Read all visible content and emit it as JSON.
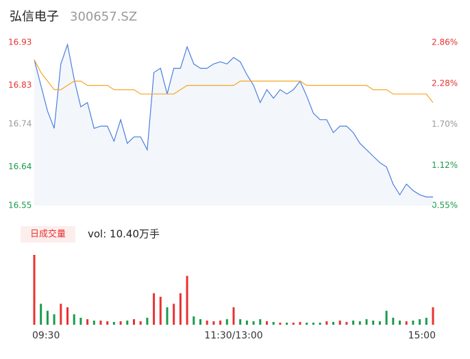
{
  "chart_data": {
    "type": "line",
    "title": "弘信电子",
    "subtitle": "300657.SZ",
    "categories": [
      "09:30",
      null,
      null,
      null,
      null,
      null,
      null,
      null,
      null,
      null,
      null,
      null,
      null,
      null,
      null,
      null,
      null,
      null,
      null,
      null,
      null,
      null,
      null,
      null,
      null,
      null,
      null,
      null,
      null,
      null,
      "11:30/13:00",
      null,
      null,
      null,
      null,
      null,
      null,
      null,
      null,
      null,
      null,
      null,
      null,
      null,
      null,
      null,
      null,
      null,
      null,
      null,
      null,
      null,
      null,
      null,
      null,
      null,
      null,
      null,
      null,
      null,
      "15:00"
    ],
    "series": [
      {
        "name": "price",
        "color": "#4a7fe0",
        "values": [
          16.89,
          16.83,
          16.77,
          16.73,
          16.88,
          16.925,
          16.845,
          16.78,
          16.79,
          16.73,
          16.735,
          16.735,
          16.7,
          16.75,
          16.695,
          16.71,
          16.71,
          16.68,
          16.86,
          16.87,
          16.81,
          16.87,
          16.87,
          16.92,
          16.88,
          16.87,
          16.87,
          16.88,
          16.885,
          16.88,
          16.895,
          16.885,
          16.855,
          16.83,
          16.79,
          16.82,
          16.8,
          16.82,
          16.81,
          16.82,
          16.84,
          16.805,
          16.765,
          16.75,
          16.75,
          16.72,
          16.735,
          16.735,
          16.72,
          16.695,
          16.68,
          16.665,
          16.65,
          16.64,
          16.6,
          16.575,
          16.6,
          16.585,
          16.575,
          16.57,
          16.57
        ]
      },
      {
        "name": "average",
        "color": "#f5a623",
        "values": [
          16.89,
          16.86,
          16.84,
          16.82,
          16.82,
          16.83,
          16.84,
          16.84,
          16.83,
          16.83,
          16.83,
          16.83,
          16.82,
          16.82,
          16.82,
          16.82,
          16.81,
          16.81,
          16.81,
          16.81,
          16.81,
          16.81,
          16.82,
          16.83,
          16.83,
          16.83,
          16.83,
          16.83,
          16.83,
          16.83,
          16.83,
          16.84,
          16.84,
          16.84,
          16.84,
          16.84,
          16.84,
          16.84,
          16.84,
          16.84,
          16.84,
          16.83,
          16.83,
          16.83,
          16.83,
          16.83,
          16.83,
          16.83,
          16.83,
          16.83,
          16.83,
          16.82,
          16.82,
          16.82,
          16.81,
          16.81,
          16.81,
          16.81,
          16.81,
          16.81,
          16.79
        ]
      }
    ],
    "ylim": [
      16.55,
      16.93
    ],
    "yticks": [
      16.93,
      16.83,
      16.74,
      16.64,
      16.55
    ],
    "ytick_colors": [
      "#e8312f",
      "#e8312f",
      "#999999",
      "#1a9b4b",
      "#1a9b4b"
    ],
    "y2lim": [
      0.55,
      2.86
    ],
    "y2ticks": [
      {
        "value": 2.86,
        "label": "2.86%"
      },
      {
        "value": 2.28,
        "label": "2.28%"
      },
      {
        "value": 1.7,
        "label": "1.70%"
      },
      {
        "value": 1.12,
        "label": "1.12%"
      },
      {
        "value": 0.55,
        "label": "0.55%"
      }
    ],
    "grid": false,
    "volume_button": "日成交量",
    "volume_label": "vol: 10.40万手",
    "volume_up_color": "#e8312f",
    "volume_down_color": "#1a9b4b",
    "volume": [
      100,
      30,
      20,
      15,
      30,
      25,
      15,
      10,
      8,
      6,
      6,
      5,
      4,
      5,
      6,
      8,
      5,
      10,
      45,
      40,
      25,
      30,
      45,
      70,
      12,
      8,
      6,
      5,
      6,
      8,
      25,
      8,
      6,
      5,
      8,
      5,
      4,
      3,
      3,
      3,
      4,
      3,
      3,
      3,
      5,
      4,
      6,
      4,
      6,
      5,
      8,
      6,
      5,
      20,
      10,
      6,
      5,
      6,
      8,
      10,
      25
    ]
  }
}
